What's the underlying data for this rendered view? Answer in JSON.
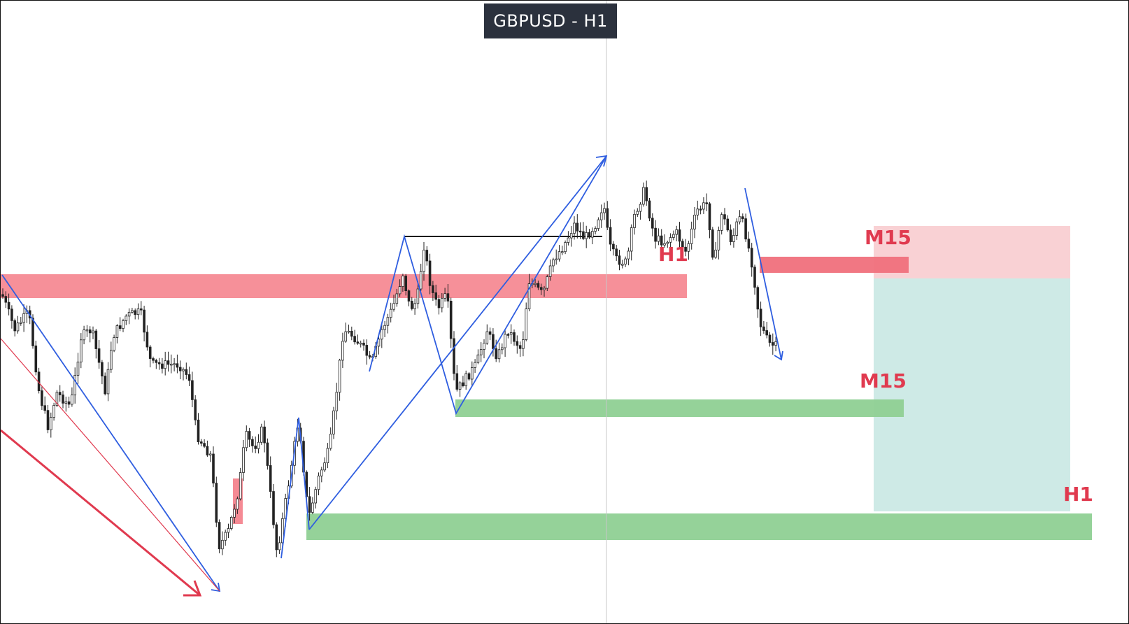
{
  "chart_data": {
    "type": "candlestick",
    "title": "GBPUSD - H1",
    "symbol": "GBPUSD",
    "timeframe": "H1",
    "colors": {
      "supply_zone": "#f58a94",
      "demand_zone": "#8fd094",
      "zone_label": "#e03a4f",
      "trend_lines": "#2f5ee0",
      "bearish_arrow": "#e03a4f",
      "candles": "#222222",
      "stop_area": "#f8c9cc",
      "target_area": "#b9e1dc"
    },
    "zone_labels": {
      "h1_supply": "H1",
      "m15_supply": "M15",
      "m15_demand": "M15",
      "h1_demand": "H1"
    },
    "ohlc_points": [
      {
        "x": 0,
        "y": 0.7
      },
      {
        "x": 10,
        "y": 0.58
      },
      {
        "x": 22,
        "y": 0.5
      },
      {
        "x": 34,
        "y": 0.48
      },
      {
        "x": 45,
        "y": 0.35
      },
      {
        "x": 55,
        "y": 0.22
      },
      {
        "x": 65,
        "y": 0.05
      },
      {
        "x": 72,
        "y": 0.18
      },
      {
        "x": 80,
        "y": 0.45
      },
      {
        "x": 92,
        "y": 0.66
      },
      {
        "x": 105,
        "y": 0.63
      },
      {
        "x": 118,
        "y": 0.72
      },
      {
        "x": 130,
        "y": 0.75
      },
      {
        "x": 142,
        "y": 0.6
      },
      {
        "x": 156,
        "y": 0.52
      },
      {
        "x": 170,
        "y": 0.88
      },
      {
        "x": 185,
        "y": 0.7
      },
      {
        "x": 200,
        "y": 0.75
      },
      {
        "x": 212,
        "y": 0.68
      },
      {
        "x": 222,
        "y": 0.62
      },
      {
        "x": 232,
        "y": 0.58
      },
      {
        "x": 240,
        "y": 0.55
      },
      {
        "x": 248,
        "y": 0.48
      }
    ]
  }
}
